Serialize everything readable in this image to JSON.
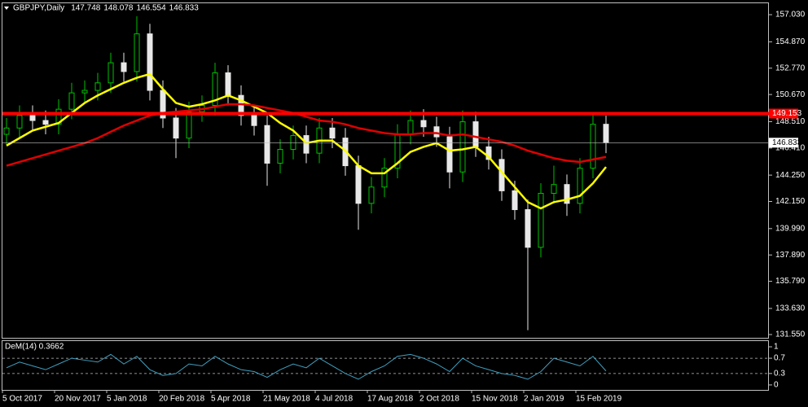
{
  "chart_data": [
    {
      "type": "candlestick",
      "title": "GBPJPY,Daily",
      "header_values": [
        147.748,
        148.078,
        146.554,
        146.833
      ],
      "categories": [
        "5 Oct 2017",
        null,
        null,
        null,
        "20 Nov 2017",
        null,
        null,
        null,
        "5 Jan 2018",
        null,
        null,
        null,
        "20 Feb 2018",
        null,
        null,
        null,
        "5 Apr 2018",
        null,
        null,
        null,
        "21 May 2018",
        null,
        null,
        null,
        "4 Jul 2018",
        null,
        null,
        null,
        "17 Aug 2018",
        null,
        null,
        null,
        "2 Oct 2018",
        null,
        null,
        null,
        "15 Nov 2018",
        null,
        null,
        null,
        "2 Jan 2019",
        null,
        null,
        null,
        "15 Feb 2019",
        null,
        null
      ],
      "open": [
        147.5,
        148.0,
        149.0,
        148.6,
        148.3,
        149.5,
        150.8,
        151.0,
        151.6,
        153.2,
        152.5,
        155.5,
        151.0,
        148.8,
        147.2,
        149.3,
        149.8,
        152.4,
        150.6,
        149.0,
        148.2,
        145.2,
        146.3,
        147.4,
        146.0,
        148.0,
        147.2,
        145.0,
        142.0,
        143.3,
        144.8,
        147.5,
        148.6,
        148.1,
        147.3,
        144.5,
        148.5,
        146.5,
        145.5,
        143.0,
        141.5,
        138.5,
        142.8,
        143.5,
        142.0,
        144.8,
        148.3
      ],
      "high": [
        148.8,
        149.8,
        149.8,
        149.4,
        150.3,
        151.6,
        151.8,
        152.4,
        154.0,
        154.0,
        156.9,
        156.3,
        151.8,
        149.6,
        150.1,
        150.6,
        153.2,
        153.0,
        151.4,
        149.8,
        149.0,
        147.1,
        148.2,
        148.2,
        148.8,
        148.8,
        148.0,
        145.8,
        144.1,
        145.6,
        148.3,
        149.4,
        149.5,
        148.9,
        148.1,
        149.4,
        149.3,
        147.3,
        146.3,
        143.8,
        142.3,
        143.6,
        145.0,
        144.3,
        145.6,
        149.1,
        149.0
      ],
      "low": [
        146.7,
        147.2,
        147.8,
        147.5,
        147.5,
        148.7,
        150.0,
        150.2,
        150.8,
        151.7,
        151.7,
        150.2,
        148.0,
        145.6,
        146.4,
        148.5,
        149.0,
        149.8,
        148.2,
        147.4,
        143.4,
        144.4,
        145.5,
        145.2,
        145.2,
        146.4,
        144.2,
        139.9,
        141.2,
        142.5,
        144.0,
        146.7,
        147.3,
        146.5,
        143.2,
        143.7,
        145.7,
        144.7,
        142.2,
        140.7,
        131.9,
        137.7,
        142.0,
        141.0,
        141.2,
        144.0,
        146.0
      ],
      "close": [
        148.0,
        149.0,
        148.6,
        148.3,
        149.5,
        150.8,
        151.0,
        151.6,
        153.2,
        152.5,
        155.5,
        151.0,
        148.8,
        147.2,
        149.3,
        149.8,
        152.4,
        150.6,
        149.0,
        148.2,
        145.2,
        146.3,
        147.4,
        146.0,
        148.0,
        147.2,
        145.0,
        142.0,
        143.3,
        144.8,
        147.5,
        148.6,
        148.1,
        147.3,
        144.5,
        148.5,
        146.5,
        145.5,
        143.0,
        141.5,
        138.5,
        142.8,
        143.5,
        142.0,
        144.8,
        148.3,
        146.833
      ],
      "up_color": "#00c000",
      "down_color": "#e8e8e8",
      "overlays": [
        {
          "color": "#ffff00",
          "values": [
            146.6,
            147.2,
            147.8,
            148.1,
            148.4,
            149.2,
            150.0,
            150.6,
            151.1,
            151.6,
            152.0,
            152.3,
            151.1,
            150.0,
            149.7,
            149.9,
            150.2,
            150.6,
            150.2,
            149.7,
            149.2,
            148.4,
            147.8,
            146.8,
            147.0,
            147.0,
            146.2,
            145.0,
            144.4,
            144.4,
            145.2,
            146.1,
            146.5,
            146.8,
            146.2,
            146.3,
            146.5,
            145.7,
            144.5,
            143.3,
            142.1,
            141.6,
            142.1,
            142.3,
            142.6,
            143.6,
            144.9
          ]
        },
        {
          "color": "#e00000",
          "values": [
            145.0,
            145.3,
            145.6,
            145.9,
            146.2,
            146.5,
            146.8,
            147.2,
            147.7,
            148.2,
            148.6,
            149.0,
            149.2,
            149.3,
            149.4,
            149.5,
            149.7,
            149.9,
            149.9,
            149.8,
            149.6,
            149.4,
            149.2,
            148.9,
            148.6,
            148.5,
            148.3,
            148.0,
            147.8,
            147.6,
            147.5,
            147.5,
            147.6,
            147.6,
            147.4,
            147.5,
            147.3,
            147.1,
            146.9,
            146.6,
            146.2,
            145.9,
            145.6,
            145.4,
            145.3,
            145.5,
            145.7
          ]
        }
      ],
      "hline": {
        "value": 149.153,
        "color": "#ff0000"
      },
      "last_price": 146.833,
      "ylim": [
        131.29,
        157.94
      ],
      "yticks": [
        {
          "value": 157.03,
          "label": "157.030"
        },
        {
          "value": 154.87,
          "label": "154.870"
        },
        {
          "value": 152.77,
          "label": "152.770"
        },
        {
          "value": 150.67,
          "label": "150.670"
        },
        {
          "value": 148.51,
          "label": "148.510"
        },
        {
          "value": 146.41,
          "label": "146.410"
        },
        {
          "value": 144.25,
          "label": "144.250"
        },
        {
          "value": 142.15,
          "label": "142.150"
        },
        {
          "value": 139.99,
          "label": "139.990"
        },
        {
          "value": 137.89,
          "label": "137.890"
        },
        {
          "value": 135.79,
          "label": "135.790"
        },
        {
          "value": 133.63,
          "label": "133.630"
        },
        {
          "value": 131.55,
          "label": "131.550"
        }
      ]
    },
    {
      "type": "line",
      "title": "DeM(14) 0.3662",
      "color": "#40a0c0",
      "values": [
        0.45,
        0.6,
        0.5,
        0.4,
        0.55,
        0.7,
        0.65,
        0.6,
        0.8,
        0.55,
        0.75,
        0.4,
        0.25,
        0.3,
        0.55,
        0.5,
        0.75,
        0.55,
        0.4,
        0.35,
        0.2,
        0.4,
        0.55,
        0.45,
        0.7,
        0.5,
        0.3,
        0.15,
        0.35,
        0.5,
        0.75,
        0.8,
        0.7,
        0.55,
        0.35,
        0.7,
        0.5,
        0.4,
        0.3,
        0.25,
        0.15,
        0.35,
        0.7,
        0.6,
        0.5,
        0.75,
        0.3662
      ],
      "ylim": [
        -0.13,
        1.15
      ],
      "yticks": [
        1,
        0.7,
        0.3,
        0
      ],
      "dashed_levels": [
        0.7,
        0.3
      ]
    }
  ]
}
